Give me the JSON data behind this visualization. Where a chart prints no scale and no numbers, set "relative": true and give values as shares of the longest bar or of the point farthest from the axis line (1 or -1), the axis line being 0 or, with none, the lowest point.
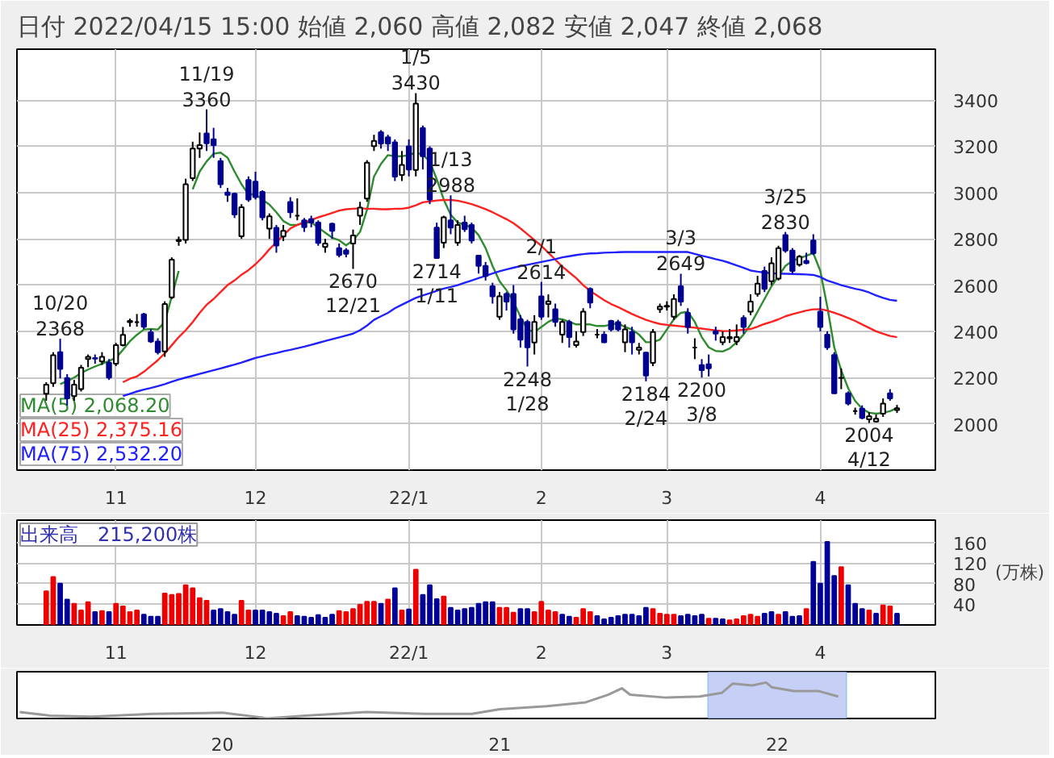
{
  "chart_data": [
    {
      "type": "candlestick",
      "title": "日付 2022/04/15 15:00 始値 2,060 高値 2,082 安値 2,047 終値 2,068",
      "categories": [
        null,
        null,
        null,
        null,
        null,
        null,
        null,
        null,
        null,
        null,
        "11",
        null,
        null,
        null,
        null,
        null,
        null,
        null,
        null,
        null,
        null,
        null,
        null,
        null,
        null,
        null,
        null,
        null,
        null,
        null,
        "12",
        null,
        null,
        null,
        null,
        null,
        null,
        null,
        null,
        null,
        null,
        null,
        null,
        null,
        null,
        null,
        null,
        null,
        null,
        null,
        null,
        null,
        "22/1",
        null,
        null,
        null,
        null,
        null,
        null,
        null,
        null,
        null,
        null,
        null,
        null,
        null,
        null,
        null,
        null,
        null,
        null,
        "2",
        null,
        null,
        null,
        null,
        null,
        null,
        null,
        null,
        null,
        null,
        null,
        null,
        null,
        null,
        null,
        null,
        null,
        "3",
        null,
        null,
        null,
        null,
        null,
        null,
        null,
        null,
        null,
        null,
        null,
        null,
        null,
        null,
        null,
        null,
        null,
        null,
        null,
        null,
        null,
        "4",
        null,
        null,
        null,
        null,
        null,
        null,
        null,
        null,
        null,
        null,
        null
      ],
      "ohlc": [
        [
          2130,
          2180,
          2100,
          2170
        ],
        [
          2176,
          2310,
          2160,
          2297
        ],
        [
          2310,
          2368,
          2197,
          2238
        ],
        [
          2198,
          2215,
          2080,
          2110
        ],
        [
          2120,
          2190,
          2100,
          2170
        ],
        [
          2150,
          2255,
          2140,
          2243
        ],
        [
          2280,
          2300,
          2245,
          2290
        ],
        [
          2285,
          2300,
          2260,
          2282
        ],
        [
          2270,
          2310,
          2255,
          2290
        ],
        [
          2265,
          2280,
          2190,
          2200
        ],
        [
          2260,
          2350,
          2250,
          2340
        ],
        [
          2340,
          2419,
          2335,
          2385
        ],
        [
          2440,
          2455,
          2420,
          2445
        ],
        [
          2440,
          2475,
          2420,
          2440
        ],
        [
          2474,
          2480,
          2410,
          2420
        ],
        [
          2396,
          2410,
          2350,
          2356
        ],
        [
          2356,
          2370,
          2300,
          2310
        ],
        [
          2313,
          2530,
          2290,
          2518
        ],
        [
          2547,
          2720,
          2540,
          2710
        ],
        [
          2790,
          2810,
          2770,
          2795
        ],
        [
          2795,
          3060,
          2780,
          3036
        ],
        [
          3062,
          3220,
          3050,
          3190
        ],
        [
          3190,
          3260,
          3150,
          3205
        ],
        [
          3256,
          3360,
          3180,
          3213
        ],
        [
          3230,
          3280,
          3150,
          3205
        ],
        [
          3136,
          3150,
          3020,
          3036
        ],
        [
          3000,
          3020,
          2960,
          2990
        ],
        [
          2995,
          3000,
          2890,
          2905
        ],
        [
          2811,
          2950,
          2800,
          2937
        ],
        [
          3054,
          3070,
          2960,
          2970
        ],
        [
          3047,
          3090,
          2970,
          2980
        ],
        [
          3003,
          3010,
          2880,
          2893
        ],
        [
          2844,
          2910,
          2800,
          2897
        ],
        [
          2848,
          2860,
          2740,
          2771
        ],
        [
          2810,
          2860,
          2790,
          2835
        ],
        [
          2959,
          2980,
          2890,
          2915
        ],
        [
          2900,
          2975,
          2880,
          2900
        ],
        [
          2880,
          2890,
          2830,
          2850
        ],
        [
          2885,
          2900,
          2850,
          2870
        ],
        [
          2870,
          2880,
          2770,
          2782
        ],
        [
          2765,
          2800,
          2740,
          2780
        ],
        [
          2865,
          2870,
          2800,
          2835
        ],
        [
          2760,
          2780,
          2720,
          2730
        ],
        [
          2750,
          2760,
          2720,
          2735
        ],
        [
          2780,
          2840,
          2670,
          2815
        ],
        [
          2900,
          2960,
          2860,
          2935
        ],
        [
          2974,
          3140,
          2960,
          3129
        ],
        [
          3201,
          3250,
          3180,
          3223
        ],
        [
          3261,
          3270,
          3190,
          3212
        ],
        [
          3239,
          3250,
          3180,
          3212
        ],
        [
          3217,
          3230,
          3050,
          3069
        ],
        [
          3076,
          3180,
          3050,
          3120
        ],
        [
          3200,
          3230,
          3070,
          3100
        ],
        [
          3098,
          3430,
          3070,
          3385
        ],
        [
          3279,
          3290,
          3100,
          3157
        ],
        [
          3190,
          3200,
          2950,
          2970
        ],
        [
          2849,
          2870,
          2714,
          2717
        ],
        [
          2783,
          2900,
          2760,
          2893
        ],
        [
          2880,
          2988,
          2820,
          2849
        ],
        [
          2783,
          2880,
          2770,
          2860
        ],
        [
          2870,
          2900,
          2830,
          2842
        ],
        [
          2860,
          2870,
          2780,
          2793
        ],
        [
          2727,
          2730,
          2650,
          2683
        ],
        [
          2683,
          2700,
          2620,
          2639
        ],
        [
          2595,
          2610,
          2520,
          2551
        ],
        [
          2463,
          2570,
          2450,
          2551
        ],
        [
          2562,
          2570,
          2490,
          2529
        ],
        [
          2562,
          2600,
          2390,
          2408
        ],
        [
          2452,
          2470,
          2330,
          2364
        ],
        [
          2441,
          2450,
          2248,
          2331
        ],
        [
          2352,
          2470,
          2300,
          2441
        ],
        [
          2551,
          2614,
          2450,
          2463
        ],
        [
          2518,
          2560,
          2460,
          2530
        ],
        [
          2496,
          2520,
          2420,
          2441
        ],
        [
          2386,
          2450,
          2350,
          2441
        ],
        [
          2441,
          2450,
          2330,
          2375
        ],
        [
          2340,
          2400,
          2330,
          2356
        ],
        [
          2397,
          2500,
          2380,
          2485
        ],
        [
          2584,
          2590,
          2500,
          2524
        ],
        [
          2386,
          2410,
          2370,
          2386
        ],
        [
          2386,
          2400,
          2350,
          2353
        ],
        [
          2445,
          2450,
          2400,
          2408
        ],
        [
          2440,
          2450,
          2400,
          2408
        ],
        [
          2353,
          2430,
          2310,
          2408
        ],
        [
          2397,
          2420,
          2300,
          2353
        ],
        [
          2320,
          2350,
          2300,
          2330
        ],
        [
          2308,
          2310,
          2184,
          2209
        ],
        [
          2264,
          2410,
          2250,
          2397
        ],
        [
          2496,
          2520,
          2480,
          2507
        ],
        [
          2507,
          2530,
          2490,
          2510
        ],
        [
          2463,
          2560,
          2450,
          2540
        ],
        [
          2595,
          2649,
          2510,
          2529
        ],
        [
          2480,
          2500,
          2390,
          2419
        ],
        [
          2330,
          2370,
          2280,
          2330
        ],
        [
          2254,
          2280,
          2200,
          2232
        ],
        [
          2258,
          2300,
          2205,
          2240
        ],
        [
          2401,
          2420,
          2360,
          2390
        ],
        [
          2353,
          2400,
          2340,
          2375
        ],
        [
          2370,
          2410,
          2350,
          2375
        ],
        [
          2356,
          2430,
          2340,
          2375
        ],
        [
          2458,
          2470,
          2390,
          2419
        ],
        [
          2485,
          2560,
          2470,
          2529
        ],
        [
          2562,
          2640,
          2550,
          2606
        ],
        [
          2661,
          2680,
          2570,
          2584
        ],
        [
          2617,
          2720,
          2600,
          2694
        ],
        [
          2628,
          2770,
          2620,
          2760
        ],
        [
          2816,
          2830,
          2740,
          2749
        ],
        [
          2749,
          2760,
          2650,
          2661
        ],
        [
          2688,
          2730,
          2680,
          2723
        ],
        [
          2705,
          2740,
          2690,
          2695
        ],
        [
          2793,
          2820,
          2730,
          2738
        ],
        [
          2485,
          2550,
          2400,
          2419
        ],
        [
          2386,
          2400,
          2320,
          2331
        ],
        [
          2298,
          2310,
          2130,
          2132
        ],
        [
          2198,
          2240,
          2150,
          2199
        ],
        [
          2132,
          2140,
          2080,
          2088
        ],
        [
          2055,
          2070,
          2040,
          2055
        ],
        [
          2066,
          2080,
          2020,
          2026
        ],
        [
          2020,
          2050,
          2004,
          2033
        ],
        [
          2010,
          2040,
          2006,
          2022
        ],
        [
          2044,
          2110,
          2030,
          2088
        ],
        [
          2132,
          2150,
          2100,
          2110
        ],
        [
          2060,
          2082,
          2047,
          2068
        ]
      ],
      "series": [
        {
          "type": "line",
          "name": "MA(5) 2,068.20",
          "color": "#2e8b2e",
          "values": [
            null,
            null,
            2172,
            2185,
            2200,
            2220,
            2235,
            2248,
            2260,
            2272,
            2286,
            2320,
            2357,
            2385,
            2408,
            2410,
            2408,
            2441,
            2551,
            2661,
            null,
            3014,
            3091,
            3135,
            3168,
            3173,
            3151,
            3091,
            3036,
            2992,
            2992,
            2970,
            2948,
            2915,
            2877,
            2860,
            2860,
            2871,
            2871,
            2849,
            2827,
            2805,
            2794,
            2772,
            2794,
            2830,
            2926,
            3069,
            3124,
            3162,
            3157,
            3157,
            3162,
            3173,
            3164,
            3135,
            3058,
            2970,
            2904,
            2871,
            2860,
            2849,
            2816,
            2760,
            2683,
            2617,
            2578,
            2529,
            2463,
            2408,
            2397,
            2419,
            2441,
            2456,
            2452,
            2441,
            2430,
            2430,
            2430,
            2423,
            2423,
            2430,
            2434,
            2419,
            2408,
            2386,
            2353,
            2353,
            2364,
            2408,
            2452,
            2480,
            2485,
            2441,
            2375,
            2331,
            2315,
            2313,
            2326,
            2353,
            2386,
            2430,
            2485,
            2540,
            2595,
            2639,
            2683,
            2705,
            2716,
            2727,
            2738,
            2661,
            2507,
            2331,
            2231,
            2154,
            2099,
            2066,
            2048,
            2044,
            2048,
            2055,
            2068
          ]
        },
        {
          "type": "line",
          "name": "MA(25) 2,375.16",
          "color": "#ff2020",
          "values": [
            null,
            null,
            null,
            null,
            null,
            null,
            null,
            null,
            null,
            null,
            null,
            2180,
            2195,
            2205,
            2225,
            2250,
            2275,
            2305,
            2340,
            2375,
            2405,
            2440,
            2480,
            2515,
            2540,
            2570,
            2600,
            2620,
            2645,
            2665,
            2690,
            2720,
            2755,
            2785,
            2815,
            2845,
            2860,
            2870,
            2882,
            2893,
            2902,
            2912,
            2922,
            2928,
            2930,
            2932,
            2930,
            2930,
            2928,
            2928,
            2930,
            2930,
            2935,
            2945,
            2958,
            2962,
            2966,
            2968,
            2968,
            2965,
            2958,
            2950,
            2940,
            2928,
            2915,
            2900,
            2885,
            2868,
            2845,
            2820,
            2795,
            2770,
            2740,
            2710,
            2680,
            2655,
            2630,
            2600,
            2575,
            2555,
            2535,
            2518,
            2505,
            2490,
            2475,
            2462,
            2450,
            2440,
            2432,
            2428,
            2425,
            2422,
            2419,
            2416,
            2412,
            2408,
            2404,
            2401,
            2402,
            2404,
            2407,
            2410,
            2420,
            2432,
            2441,
            2452,
            2465,
            2474,
            2482,
            2490,
            2495,
            2496,
            2490,
            2480,
            2470,
            2458,
            2445,
            2430,
            2415,
            2400,
            2390,
            2380,
            2375
          ]
        },
        {
          "type": "line",
          "name": "MA(75) 2,532.20",
          "color": "#2020ff",
          "values": [
            null,
            null,
            null,
            null,
            null,
            null,
            null,
            null,
            null,
            null,
            null,
            2120,
            2130,
            2140,
            2148,
            2155,
            2163,
            2172,
            2182,
            2192,
            2200,
            2208,
            2216,
            2224,
            2232,
            2240,
            2248,
            2256,
            2265,
            2275,
            2285,
            2292,
            2300,
            2306,
            2314,
            2320,
            2327,
            2334,
            2342,
            2350,
            2358,
            2366,
            2374,
            2382,
            2390,
            2405,
            2425,
            2450,
            2465,
            2480,
            2500,
            2515,
            2530,
            2545,
            2555,
            2565,
            2575,
            2585,
            2592,
            2600,
            2610,
            2620,
            2630,
            2640,
            2650,
            2660,
            2668,
            2675,
            2682,
            2688,
            2694,
            2700,
            2706,
            2712,
            2720,
            2725,
            2730,
            2734,
            2737,
            2738,
            2740,
            2741,
            2742,
            2743,
            2743,
            2743,
            2743,
            2743,
            2743,
            2743,
            2743,
            2743,
            2743,
            2735,
            2727,
            2720,
            2712,
            2705,
            2696,
            2685,
            2675,
            2663,
            2658,
            2654,
            2651,
            2650,
            2649,
            2648,
            2647,
            2646,
            2644,
            2635,
            2620,
            2610,
            2600,
            2592,
            2584,
            2578,
            2568,
            2555,
            2545,
            2536,
            2532
          ]
        }
      ],
      "ylim": [
        1800,
        3620
      ],
      "yticks": [
        2000,
        2200,
        2400,
        2600,
        2800,
        3000,
        3200,
        3400
      ],
      "grid": true,
      "legend": "bottom left",
      "annotations": [
        {
          "text": "10/20\n2368",
          "y": 2368
        },
        {
          "text": "11/19\n3360",
          "y": 3360
        },
        {
          "text": "2670\n12/21",
          "y": 2670
        },
        {
          "text": "1/5\n3430",
          "y": 3430
        },
        {
          "text": "2714\n1/11",
          "y": 2714
        },
        {
          "text": "1/13\n2988",
          "y": 2988
        },
        {
          "text": "2248\n1/28",
          "y": 2248
        },
        {
          "text": "2/1\n2614",
          "y": 2614
        },
        {
          "text": "2184\n2/24",
          "y": 2184
        },
        {
          "text": "3/3\n2649",
          "y": 2649
        },
        {
          "text": "2200\n3/8",
          "y": 2200
        },
        {
          "text": "3/25\n2830",
          "y": 2830
        },
        {
          "text": "2004\n4/12",
          "y": 2004
        }
      ]
    },
    {
      "type": "bar",
      "title": "出来高　215,200株",
      "ylabel": "(万株)",
      "categories": [
        null,
        null,
        null,
        null,
        null,
        null,
        null,
        null,
        null,
        null,
        "11",
        null,
        null,
        null,
        null,
        null,
        null,
        null,
        null,
        null,
        null,
        null,
        null,
        null,
        null,
        null,
        null,
        null,
        null,
        null,
        "12",
        null,
        null,
        null,
        null,
        null,
        null,
        null,
        null,
        null,
        null,
        null,
        null,
        null,
        null,
        null,
        null,
        null,
        null,
        null,
        null,
        null,
        "22/1",
        null,
        null,
        null,
        null,
        null,
        null,
        null,
        null,
        null,
        null,
        null,
        null,
        null,
        null,
        null,
        null,
        null,
        null,
        "2",
        null,
        null,
        null,
        null,
        null,
        null,
        null,
        null,
        null,
        null,
        null,
        null,
        null,
        null,
        null,
        null,
        null,
        "3",
        null,
        null,
        null,
        null,
        null,
        null,
        null,
        null,
        null,
        null,
        null,
        null,
        null,
        null,
        null,
        null,
        null,
        null,
        null,
        null,
        null,
        "4",
        null,
        null,
        null,
        null,
        null,
        null,
        null,
        null,
        null,
        null,
        null
      ],
      "values": [
        65,
        93,
        80,
        49,
        41,
        28,
        44,
        25,
        27,
        25,
        41,
        36,
        25,
        28,
        20,
        16,
        16,
        61,
        58,
        60,
        77,
        71,
        52,
        47,
        28,
        31,
        25,
        20,
        47,
        28,
        28,
        28,
        25,
        22,
        17,
        25,
        17,
        16,
        14,
        19,
        14,
        20,
        27,
        25,
        31,
        39,
        45,
        45,
        41,
        49,
        71,
        28,
        30,
        107,
        58,
        77,
        50,
        55,
        33,
        28,
        31,
        33,
        41,
        44,
        44,
        33,
        33,
        24,
        31,
        31,
        25,
        45,
        28,
        25,
        20,
        16,
        14,
        31,
        25,
        17,
        11,
        14,
        17,
        20,
        20,
        17,
        33,
        31,
        22,
        20,
        20,
        17,
        20,
        17,
        20,
        12,
        12,
        11,
        9,
        11,
        17,
        20,
        16,
        22,
        25,
        20,
        25,
        16,
        17,
        31,
        122,
        80,
        161,
        95,
        112,
        77,
        41,
        31,
        28,
        22,
        38,
        36,
        22
      ],
      "colors": [
        "#ee0000",
        "#ee0000",
        "#000099",
        "#000099",
        "#ee0000",
        "#ee0000",
        "#ee0000",
        "#000099",
        "#ee0000",
        "#000099",
        "#ee0000",
        "#ee0000",
        "#ee0000",
        "#ee0000",
        "#000099",
        "#000099",
        "#000099",
        "#ee0000",
        "#ee0000",
        "#ee0000",
        "#ee0000",
        "#ee0000",
        "#ee0000",
        "#ee0000",
        "#000099",
        "#000099",
        "#000099",
        "#000099",
        "#ee0000",
        "#ee0000",
        "#000099",
        "#000099",
        "#000099",
        "#000099",
        "#ee0000",
        "#ee0000",
        "#000099",
        "#000099",
        "#000099",
        "#000099",
        "#000099",
        "#000099",
        "#ee0000",
        "#ee0000",
        "#ee0000",
        "#ee0000",
        "#ee0000",
        "#ee0000",
        "#000099",
        "#ee0000",
        "#000099",
        "#ee0000",
        "#000099",
        "#ee0000",
        "#000099",
        "#000099",
        "#000099",
        "#ee0000",
        "#000099",
        "#000099",
        "#000099",
        "#000099",
        "#000099",
        "#000099",
        "#000099",
        "#ee0000",
        "#ee0000",
        "#ee0000",
        "#000099",
        "#000099",
        "#ee0000",
        "#ee0000",
        "#ee0000",
        "#ee0000",
        "#000099",
        "#000099",
        "#ee0000",
        "#ee0000",
        "#ee0000",
        "#000099",
        "#000099",
        "#000099",
        "#000099",
        "#000099",
        "#000099",
        "#000099",
        "#000099",
        "#ee0000",
        "#ee0000",
        "#ee0000",
        "#ee0000",
        "#000099",
        "#000099",
        "#000099",
        "#000099",
        "#ee0000",
        "#000099",
        "#000099",
        "#ee0000",
        "#ee0000",
        "#ee0000",
        "#ee0000",
        "#ee0000",
        "#000099",
        "#000099",
        "#ee0000",
        "#000099",
        "#000099",
        "#000099",
        "#ee0000",
        "#000099",
        "#000099",
        "#000099",
        "#000099",
        "#ee0000",
        "#000099",
        "#000099",
        "#000099",
        "#ee0000",
        "#000099",
        "#ee0000",
        "#ee0000",
        "#000099"
      ],
      "ylim": [
        0,
        203
      ],
      "yticks": [
        40,
        80,
        120,
        160
      ],
      "grid": true
    },
    {
      "type": "line",
      "relative": true,
      "tick_labels": "x",
      "color": "#999999",
      "x": [
        2019.27,
        2019.38,
        2019.53,
        2019.75,
        2020.0,
        2020.14,
        2020.16,
        2020.3,
        2020.52,
        2020.73,
        2020.9,
        2021.0,
        2021.17,
        2021.31,
        2021.39,
        2021.44,
        2021.47,
        2021.6,
        2021.72,
        2021.8,
        2021.84,
        2021.91,
        2021.96,
        2021.98,
        2022.06,
        2022.15,
        2022.22
      ],
      "values": [
        0.18,
        0.08,
        0.05,
        0.13,
        0.16,
        0.03,
        0,
        0.08,
        0.18,
        0.13,
        0.13,
        0.26,
        0.34,
        0.45,
        0.66,
        0.84,
        0.66,
        0.58,
        0.61,
        0.71,
        0.97,
        0.92,
        1,
        0.87,
        0.76,
        0.76,
        0.61
      ],
      "xlim": [
        2019.26,
        2022.57
      ],
      "xticks": [
        {
          "value": 2020,
          "label": "20"
        },
        {
          "value": 2021,
          "label": "21"
        },
        {
          "value": 2022,
          "label": "22"
        }
      ],
      "bands": [
        {
          "axis": "x",
          "from": 2021.75,
          "to": 2022.25,
          "color": "#b8c4f4"
        }
      ]
    }
  ]
}
